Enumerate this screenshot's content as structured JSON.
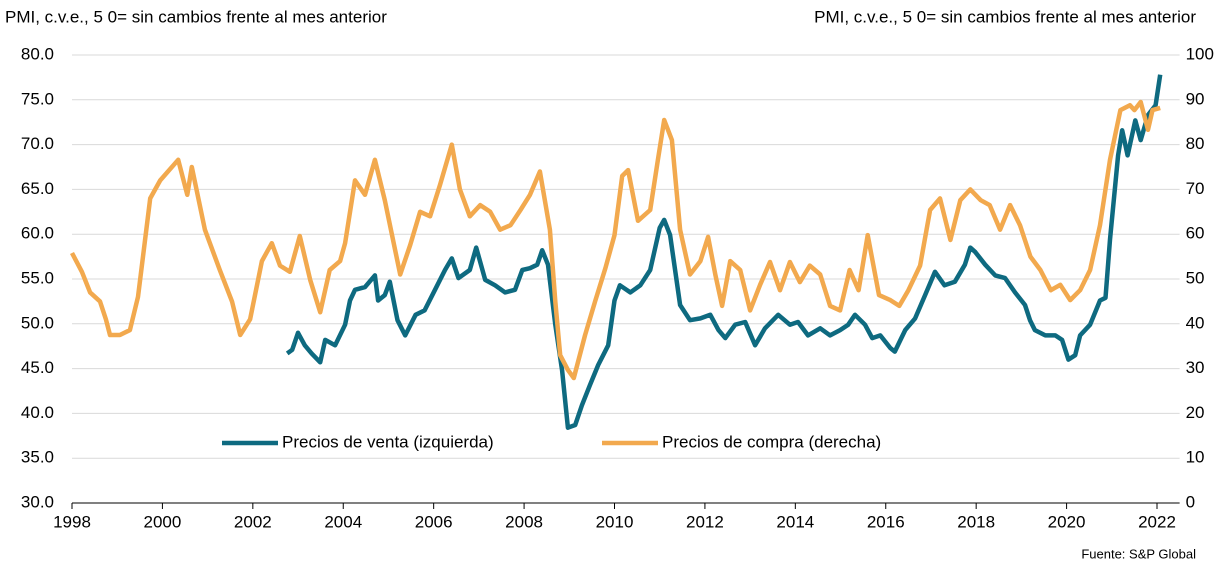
{
  "chart_data": {
    "type": "line",
    "y_label": "PMI, c.v.e., 5 0= sin cambios frente al mes anterior",
    "y2_label": "PMI, c.v.e., 5 0= sin cambios frente al mes anterior",
    "source": "Fuente: S&P Global",
    "xlim": [
      1998,
      2022.5
    ],
    "xticks": [
      1998,
      2000,
      2002,
      2004,
      2006,
      2008,
      2010,
      2012,
      2014,
      2016,
      2018,
      2020,
      2022
    ],
    "ylim": [
      30,
      80
    ],
    "yticks": [
      {
        "value": 30,
        "label": "30.0"
      },
      {
        "value": 35,
        "label": "35.0"
      },
      {
        "value": 40,
        "label": "40.0"
      },
      {
        "value": 45,
        "label": "45.0"
      },
      {
        "value": 50,
        "label": "50.0"
      },
      {
        "value": 55,
        "label": "55.0"
      },
      {
        "value": 60,
        "label": "60.0"
      },
      {
        "value": 65,
        "label": "65.0"
      },
      {
        "value": 70,
        "label": "70.0"
      },
      {
        "value": 75,
        "label": "75.0"
      },
      {
        "value": 80,
        "label": "80.0"
      }
    ],
    "y2lim": [
      0,
      100
    ],
    "y2ticks": [
      0,
      10,
      20,
      30,
      40,
      50,
      60,
      70,
      80,
      90,
      100
    ],
    "grid": true,
    "legend": "bottom",
    "series": [
      {
        "name": "Precios de venta (izquierda)",
        "color": "#0e6a80",
        "axis": "y",
        "x": [
          2002.76,
          2002.87,
          2003.0,
          2003.15,
          2003.3,
          2003.49,
          2003.6,
          2003.82,
          2004.04,
          2004.15,
          2004.26,
          2004.48,
          2004.7,
          2004.77,
          2004.92,
          2005.03,
          2005.2,
          2005.37,
          2005.6,
          2005.8,
          2006.03,
          2006.25,
          2006.4,
          2006.55,
          2006.8,
          2006.94,
          2007.14,
          2007.36,
          2007.58,
          2007.8,
          2007.96,
          2008.13,
          2008.29,
          2008.4,
          2008.53,
          2008.69,
          2008.84,
          2008.97,
          2009.13,
          2009.28,
          2009.46,
          2009.64,
          2009.86,
          2010.0,
          2010.12,
          2010.35,
          2010.57,
          2010.79,
          2011.0,
          2011.1,
          2011.23,
          2011.45,
          2011.67,
          2011.9,
          2012.12,
          2012.3,
          2012.45,
          2012.67,
          2012.89,
          2013.11,
          2013.33,
          2013.62,
          2013.88,
          2014.06,
          2014.28,
          2014.55,
          2014.77,
          2014.99,
          2015.17,
          2015.32,
          2015.54,
          2015.7,
          2015.88,
          2016.1,
          2016.2,
          2016.43,
          2016.65,
          2016.87,
          2017.09,
          2017.3,
          2017.53,
          2017.75,
          2017.87,
          2017.98,
          2018.2,
          2018.42,
          2018.64,
          2018.86,
          2019.08,
          2019.19,
          2019.3,
          2019.53,
          2019.75,
          2019.9,
          2020.04,
          2020.19,
          2020.3,
          2020.52,
          2020.74,
          2020.86,
          2020.96,
          2021.14,
          2021.23,
          2021.35,
          2021.52,
          2021.64,
          2021.8,
          2021.97,
          2022.07
        ],
        "values": [
          46.7,
          47.1,
          49.0,
          47.6,
          46.7,
          45.7,
          48.2,
          47.6,
          49.9,
          52.6,
          53.8,
          54.1,
          55.4,
          52.6,
          53.2,
          54.7,
          50.4,
          48.7,
          51.0,
          51.5,
          53.8,
          56.0,
          57.3,
          55.1,
          56.0,
          58.5,
          54.9,
          54.3,
          53.5,
          53.8,
          56.0,
          56.2,
          56.6,
          58.2,
          56.6,
          49.9,
          44.8,
          38.4,
          38.7,
          40.9,
          43.2,
          45.4,
          47.6,
          52.6,
          54.3,
          53.5,
          54.3,
          56.0,
          60.7,
          61.6,
          59.9,
          52.1,
          50.4,
          50.6,
          51.0,
          49.3,
          48.4,
          49.9,
          50.2,
          47.6,
          49.5,
          51.0,
          49.9,
          50.2,
          48.7,
          49.5,
          48.7,
          49.3,
          49.9,
          51.0,
          49.9,
          48.4,
          48.7,
          47.3,
          46.9,
          49.3,
          50.6,
          53.2,
          55.8,
          54.3,
          54.7,
          56.6,
          58.5,
          58.0,
          56.6,
          55.4,
          55.1,
          53.5,
          52.1,
          50.4,
          49.3,
          48.7,
          48.7,
          48.2,
          46.0,
          46.5,
          48.7,
          49.9,
          52.6,
          52.9,
          59.4,
          68.8,
          71.6,
          68.8,
          72.7,
          70.5,
          73.3,
          74.4,
          77.8
        ]
      },
      {
        "name": "Precios de compra (derecha)",
        "color": "#f2a94e",
        "axis": "y2",
        "x": [
          1998.0,
          1998.22,
          1998.4,
          1998.62,
          1998.75,
          1998.84,
          1999.06,
          1999.28,
          1999.46,
          1999.73,
          1999.95,
          2000.35,
          2000.55,
          2000.65,
          2000.94,
          2001.27,
          2001.54,
          2001.72,
          2001.94,
          2002.2,
          2002.42,
          2002.6,
          2002.82,
          2003.04,
          2003.27,
          2003.49,
          2003.7,
          2003.93,
          2004.04,
          2004.26,
          2004.48,
          2004.7,
          2004.92,
          2005.26,
          2005.48,
          2005.7,
          2005.92,
          2006.14,
          2006.4,
          2006.58,
          2006.8,
          2007.03,
          2007.25,
          2007.47,
          2007.7,
          2007.92,
          2008.13,
          2008.35,
          2008.57,
          2008.69,
          2008.8,
          2008.97,
          2009.1,
          2009.35,
          2009.57,
          2009.8,
          2010.0,
          2010.17,
          2010.3,
          2010.52,
          2010.79,
          2010.96,
          2011.1,
          2011.27,
          2011.45,
          2011.67,
          2011.9,
          2012.07,
          2012.23,
          2012.38,
          2012.56,
          2012.78,
          2013.0,
          2013.22,
          2013.44,
          2013.66,
          2013.88,
          2014.1,
          2014.32,
          2014.55,
          2014.77,
          2014.99,
          2015.2,
          2015.4,
          2015.6,
          2015.85,
          2016.1,
          2016.3,
          2016.5,
          2016.76,
          2016.98,
          2017.2,
          2017.43,
          2017.65,
          2017.87,
          2018.1,
          2018.3,
          2018.53,
          2018.75,
          2018.97,
          2019.2,
          2019.42,
          2019.65,
          2019.86,
          2020.08,
          2020.3,
          2020.52,
          2020.74,
          2020.96,
          2021.19,
          2021.4,
          2021.5,
          2021.64,
          2021.8,
          2021.9,
          2022.07
        ],
        "values": [
          55.8,
          51.6,
          47.0,
          45.0,
          41.0,
          37.5,
          37.5,
          38.6,
          46.0,
          68.0,
          72.0,
          76.6,
          68.8,
          75.0,
          61.0,
          52.0,
          45.0,
          37.5,
          41.0,
          54.0,
          58.0,
          53.0,
          51.6,
          59.6,
          49.8,
          42.6,
          52.0,
          54.0,
          58.0,
          72.0,
          68.8,
          76.6,
          67.6,
          51.0,
          57.6,
          65.0,
          64.0,
          71.0,
          80.0,
          70.0,
          64.0,
          66.5,
          65.0,
          61.0,
          62.0,
          65.4,
          68.8,
          74.0,
          61.0,
          45.0,
          33.0,
          29.7,
          27.9,
          37.5,
          45.0,
          52.5,
          59.8,
          73.0,
          74.3,
          63.0,
          65.4,
          76.6,
          85.5,
          81.0,
          61.0,
          51.0,
          54.0,
          59.4,
          51.0,
          44.0,
          54.0,
          52.0,
          43.0,
          48.7,
          53.8,
          47.5,
          53.8,
          49.3,
          53.0,
          51.0,
          44.0,
          43.0,
          52.0,
          47.5,
          59.8,
          46.4,
          45.3,
          44.0,
          47.5,
          53.0,
          65.4,
          68.0,
          58.7,
          67.6,
          70.0,
          67.6,
          66.5,
          61.0,
          66.5,
          62.0,
          55.0,
          52.0,
          47.5,
          48.7,
          45.3,
          47.5,
          52.0,
          62.0,
          76.6,
          87.7,
          88.8,
          87.7,
          89.5,
          83.3,
          87.7,
          88.2
        ]
      }
    ]
  }
}
